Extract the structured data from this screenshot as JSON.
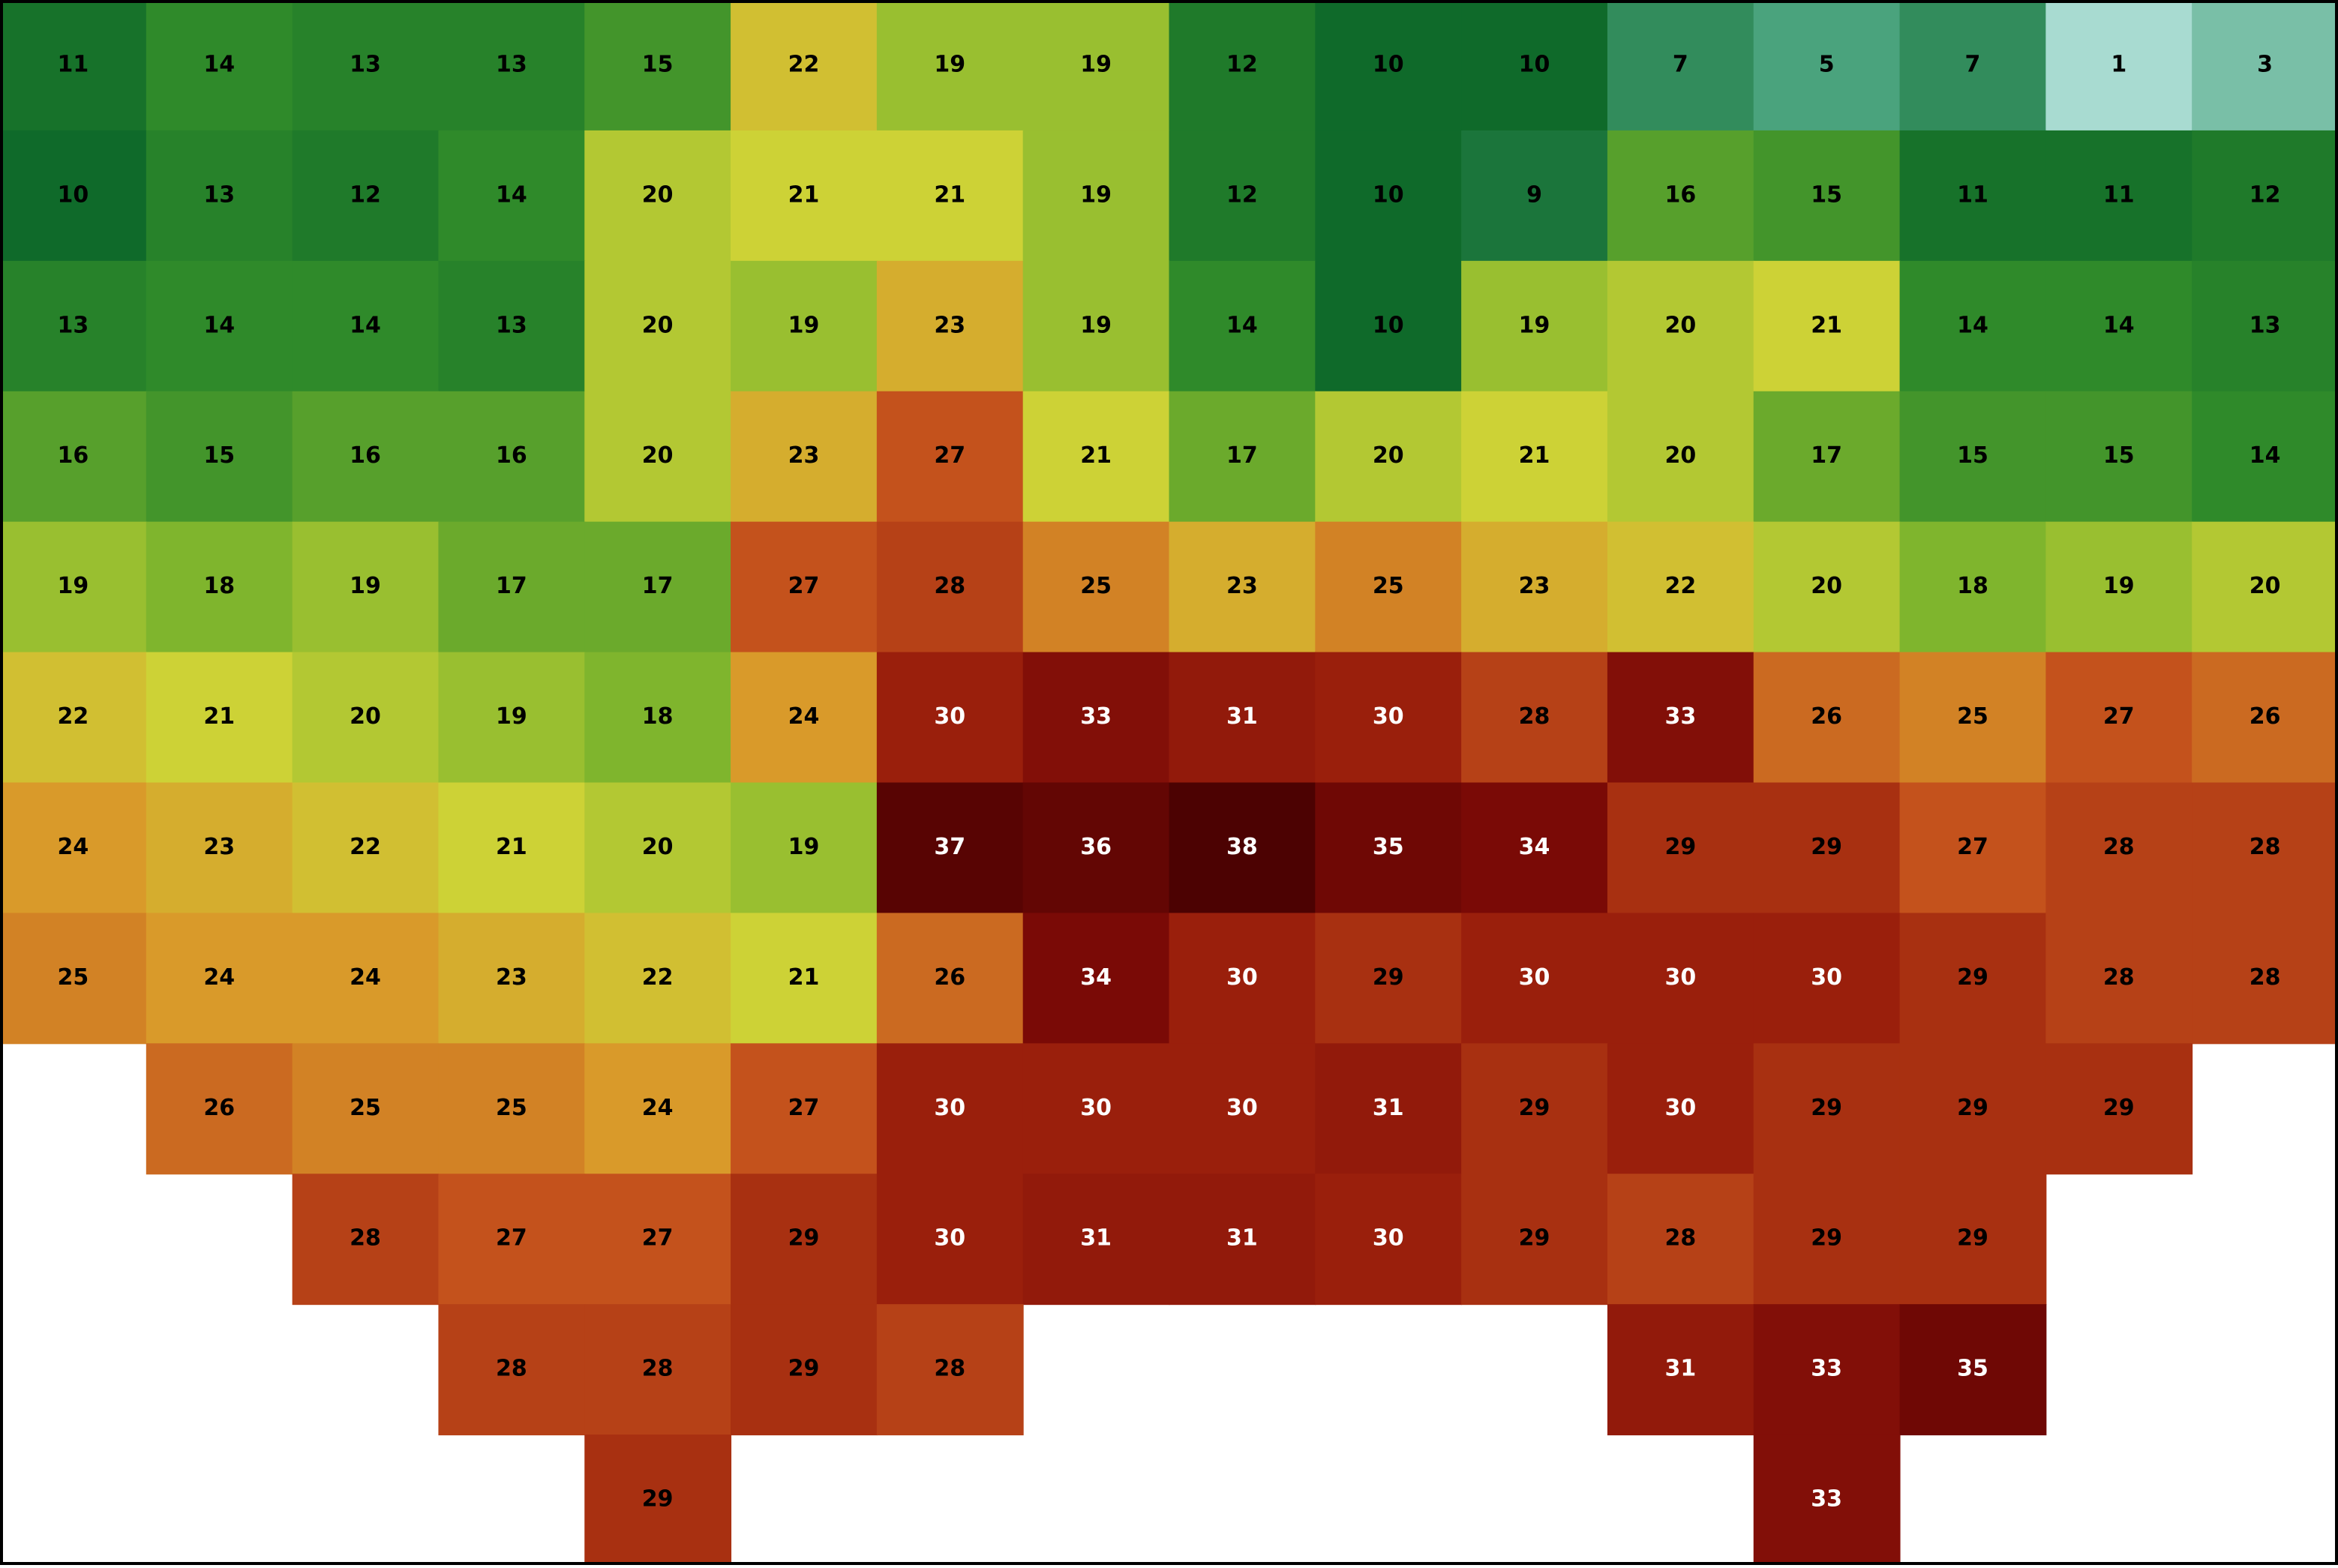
{
  "map": {
    "rows": [
      [
        11,
        14,
        13,
        13,
        15,
        22,
        19,
        19,
        12,
        10,
        10,
        7,
        5,
        7,
        1,
        3
      ],
      [
        10,
        13,
        12,
        14,
        20,
        21,
        21,
        19,
        12,
        10,
        9,
        16,
        15,
        11,
        11,
        12
      ],
      [
        13,
        14,
        14,
        13,
        20,
        19,
        23,
        19,
        14,
        10,
        19,
        20,
        21,
        14,
        14,
        13
      ],
      [
        16,
        15,
        16,
        16,
        20,
        23,
        27,
        21,
        17,
        20,
        21,
        20,
        17,
        15,
        15,
        14
      ],
      [
        19,
        18,
        19,
        17,
        17,
        27,
        28,
        25,
        23,
        25,
        23,
        22,
        20,
        18,
        19,
        20
      ],
      [
        22,
        21,
        20,
        19,
        18,
        24,
        30,
        33,
        31,
        30,
        28,
        33,
        26,
        25,
        27,
        26
      ],
      [
        24,
        23,
        22,
        21,
        20,
        19,
        37,
        36,
        38,
        35,
        34,
        29,
        29,
        27,
        28,
        28
      ],
      [
        25,
        24,
        24,
        23,
        22,
        21,
        26,
        34,
        30,
        29,
        30,
        30,
        30,
        29,
        28,
        28
      ],
      [
        null,
        26,
        25,
        25,
        24,
        27,
        30,
        30,
        30,
        31,
        29,
        30,
        29,
        29,
        29,
        null
      ],
      [
        null,
        null,
        28,
        27,
        27,
        29,
        30,
        31,
        31,
        30,
        29,
        28,
        29,
        29,
        null,
        null
      ],
      [
        null,
        null,
        null,
        28,
        28,
        29,
        28,
        null,
        null,
        null,
        null,
        31,
        33,
        35,
        null,
        null
      ],
      [
        null,
        null,
        null,
        null,
        29,
        null,
        null,
        null,
        null,
        null,
        null,
        null,
        33,
        null,
        null,
        null
      ]
    ]
  }
}
